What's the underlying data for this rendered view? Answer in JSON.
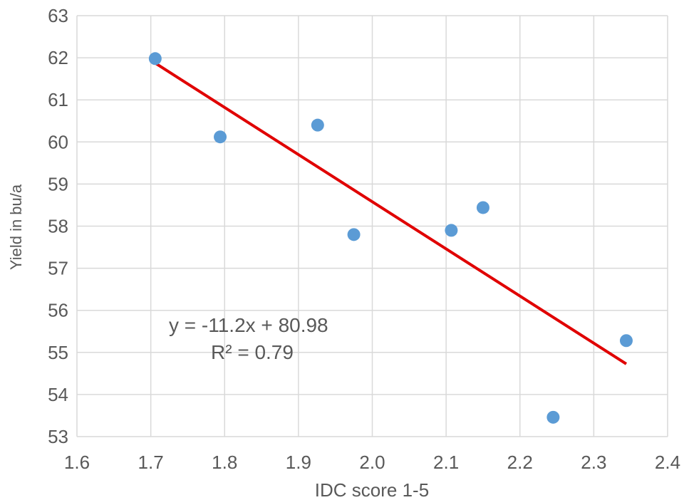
{
  "chart_data": {
    "type": "scatter",
    "title": "",
    "xlabel": "IDC score 1-5",
    "ylabel": "Yield in bu/a",
    "xlim": [
      1.6,
      2.4
    ],
    "ylim": [
      53,
      63
    ],
    "x_ticks": [
      "1.6",
      "1.7",
      "1.8",
      "1.9",
      "2.0",
      "2.1",
      "2.2",
      "2.3",
      "2.4"
    ],
    "y_ticks": [
      "53",
      "54",
      "55",
      "56",
      "57",
      "58",
      "59",
      "60",
      "61",
      "62",
      "63"
    ],
    "grid": true,
    "legend": false,
    "series": [
      {
        "color": "#5b9bd5",
        "x": [
          1.706,
          1.794,
          1.926,
          1.975,
          2.107,
          2.15,
          2.245,
          2.344
        ],
        "y": [
          61.98,
          60.12,
          60.4,
          57.8,
          57.9,
          58.44,
          53.46,
          55.28
        ]
      }
    ],
    "trendline": {
      "color": "#e00000",
      "slope": -11.2,
      "intercept": 80.98,
      "x_start": 1.706,
      "x_end": 2.344
    },
    "annotations": {
      "equation": "y = -11.2x + 80.98",
      "r2": "R² = 0.79"
    }
  }
}
